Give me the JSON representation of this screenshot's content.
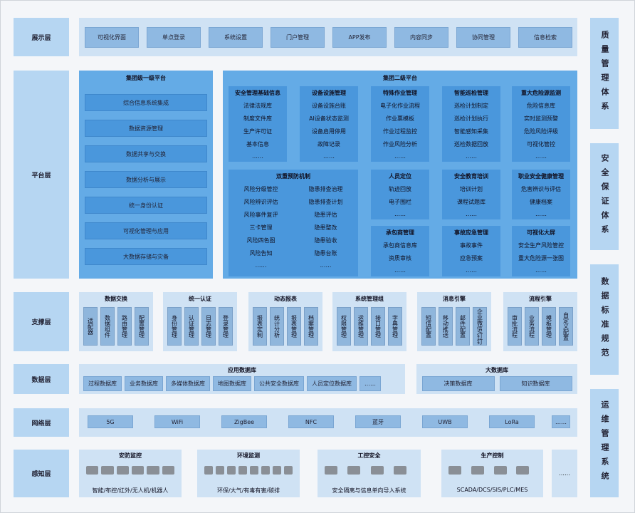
{
  "layers": [
    "展示层",
    "平台层",
    "支撑层",
    "数据层",
    "网络层",
    "感知层"
  ],
  "systems": [
    "质量管理体系",
    "安全保证体系",
    "数据标准规范",
    "运维管理系统"
  ],
  "presentation": [
    "可视化界面",
    "单点登录",
    "系统设置",
    "门户管理",
    "APP发布",
    "内容同步",
    "协同管理",
    "信息检索"
  ],
  "platform": {
    "level1": {
      "title": "集团级一级平台",
      "items": [
        "综合信息系统集成",
        "数据资源管理",
        "数据共享与交换",
        "数据分析与展示",
        "统一身份认证",
        "可视化管理与应用",
        "大数据存储与灾备"
      ]
    },
    "level2": {
      "title": "集团二级平台",
      "modules": [
        {
          "title": "安全管理基础信息",
          "items": [
            "法律法规库",
            "制度文件库",
            "生产许可证",
            "基本信息",
            "……"
          ]
        },
        {
          "title": "设备设施管理",
          "items": [
            "设备设施台账",
            "AI设备状态监测",
            "设备启用停用",
            "故障记录",
            "……"
          ]
        },
        {
          "title": "特殊作业管理",
          "items": [
            "电子化作业流程",
            "作业票模板",
            "作业过程监控",
            "作业风险分析",
            "……"
          ]
        },
        {
          "title": "智能巡检管理",
          "items": [
            "巡检计划制定",
            "巡检计划执行",
            "智能感知采集",
            "巡检数据回放",
            "……"
          ]
        },
        {
          "title": "重大危险源监测",
          "items": [
            "危险信息库",
            "实时监测预警",
            "危险风险评级",
            "可视化管控",
            "……"
          ]
        },
        {
          "title": "双重预防机制",
          "columns": [
            [
              "风险分级管控",
              "风险辨识评估",
              "风险事件复评",
              "三卡管理",
              "风险四色图",
              "风险告知",
              "……"
            ],
            [
              "隐患排查治理",
              "隐患排查计划",
              "隐患评估",
              "隐患整改",
              "隐患验收",
              "隐患台账",
              "……"
            ]
          ]
        },
        {
          "title": "人员定位",
          "items": [
            "轨迹回放",
            "电子围栏",
            "……"
          ]
        },
        {
          "title": "安全教育培训",
          "items": [
            "培训计划",
            "课程试题库",
            "……"
          ]
        },
        {
          "title": "职业安全健康管理",
          "items": [
            "危害辨识与评估",
            "健康档案",
            "……"
          ]
        },
        {
          "title": "承包商管理",
          "items": [
            "承包商信息库",
            "资质审核",
            "……"
          ]
        },
        {
          "title": "事故应急管理",
          "items": [
            "事故事件",
            "应急预案",
            "……"
          ]
        },
        {
          "title": "可视化大屏",
          "items": [
            "安全生产风险管控",
            "重大危险源一张图",
            "……"
          ]
        }
      ]
    }
  },
  "support": [
    {
      "title": "数据交换",
      "items": [
        "适配器",
        "数据组件",
        "路由管理",
        "配置管理"
      ]
    },
    {
      "title": "统一认证",
      "items": [
        "身份管理",
        "认证管理",
        "日志管理",
        "登录管理"
      ]
    },
    {
      "title": "动态报表",
      "items": [
        "报表定制",
        "统计分析",
        "报表管理",
        "档案管理"
      ]
    },
    {
      "title": "系统管理组",
      "items": [
        "权限管理",
        "运维管理",
        "接口管理",
        "字典管理"
      ]
    },
    {
      "title": "消息引擎",
      "items": [
        "短信配置",
        "移动推送",
        "邮件配置",
        "企业微信/钉钉"
      ]
    },
    {
      "title": "流程引擎",
      "items": [
        "审批流程",
        "业务流程",
        "模板管理",
        "自定义配置"
      ]
    }
  ],
  "data": [
    {
      "title": "应用数据库",
      "items": [
        "过程数据库",
        "业务数据库",
        "多媒体数据库",
        "地图数据库",
        "公共安全数据库",
        "人员定位数据库",
        "……"
      ]
    },
    {
      "title": "大数据库",
      "items": [
        "决策数据库",
        "知识数据库"
      ]
    }
  ],
  "network": [
    "5G",
    "WiFi",
    "ZigBee",
    "NFC",
    "蓝牙",
    "UWB",
    "LoRa",
    "……"
  ],
  "perception": [
    {
      "title": "安防监控",
      "caption": "智能/布控/红外/无人机/机器人"
    },
    {
      "title": "环境监测",
      "caption": "环保/大气/有毒有害/碳排"
    },
    {
      "title": "工控安全",
      "caption": "安全隔离与信息单向导入系统"
    },
    {
      "title": "生产控制",
      "caption": "SCADA/DCS/SIS/PLC/MES"
    }
  ],
  "perception_more": "……"
}
